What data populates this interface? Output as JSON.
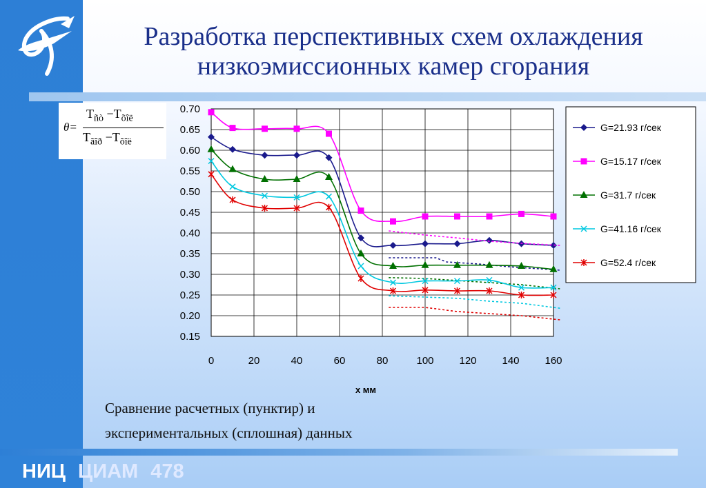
{
  "title": [
    "Разработка перспективных схем охлаждения",
    "низкоэмиссионных камер сгорания"
  ],
  "formula": {
    "lhs": "θ=",
    "num_a": "T",
    "num_a_sub": "ñò",
    "minus": "−",
    "num_b": "T",
    "num_b_sub": "õîë",
    "den_a": "T",
    "den_a_sub": "ãîð",
    "den_b": "T",
    "den_b_sub": "õîë"
  },
  "caption": [
    "Сравнение расчетных (пунктир) и",
    "экспериментальных (сплошная) данных"
  ],
  "footer": {
    "org": "НИЦ",
    "name": "ЦИАМ",
    "page": "478"
  },
  "chart_data": {
    "type": "line",
    "xlabel": "x мм",
    "ylabel": "",
    "xlim": [
      0,
      160
    ],
    "ylim": [
      0.15,
      0.7
    ],
    "xticks": [
      "0",
      "20",
      "40",
      "60",
      "80",
      "100",
      "120",
      "140",
      "160"
    ],
    "yticks": [
      "0.70",
      "0.65",
      "0.60",
      "0.55",
      "0.50",
      "0.45",
      "0.40",
      "0.35",
      "0.30",
      "0.25",
      "0.20",
      "0.15"
    ],
    "grid": true,
    "legend_position": "right",
    "x": [
      0,
      10,
      25,
      40,
      55,
      70,
      85,
      100,
      115,
      130,
      145,
      160
    ],
    "series": [
      {
        "name": "G=21.93 г/сек",
        "color": "#1a1a8c",
        "marker": "diamond",
        "values": [
          0.632,
          0.602,
          0.588,
          0.588,
          0.582,
          0.388,
          0.37,
          0.374,
          0.374,
          0.382,
          0.374,
          0.37
        ],
        "calc": {
          "x": [
            83,
            105,
            110,
            125,
            140,
            163
          ],
          "values": [
            0.34,
            0.34,
            0.33,
            0.325,
            0.318,
            0.31
          ]
        }
      },
      {
        "name": "G=15.17 г/сек",
        "color": "#ff00ff",
        "marker": "square",
        "values": [
          0.692,
          0.654,
          0.652,
          0.652,
          0.64,
          0.454,
          0.428,
          0.44,
          0.44,
          0.44,
          0.446,
          0.44
        ],
        "calc": {
          "x": [
            83,
            100,
            115,
            130,
            145,
            163
          ],
          "values": [
            0.405,
            0.395,
            0.388,
            0.38,
            0.375,
            0.37
          ]
        }
      },
      {
        "name": "G=31.7 г/сек",
        "color": "#007000",
        "marker": "triangle",
        "values": [
          0.602,
          0.554,
          0.53,
          0.53,
          0.535,
          0.35,
          0.32,
          0.322,
          0.322,
          0.322,
          0.32,
          0.312
        ],
        "calc": {
          "x": [
            83,
            100,
            115,
            130,
            145,
            163
          ],
          "values": [
            0.292,
            0.29,
            0.285,
            0.28,
            0.275,
            0.265
          ]
        }
      },
      {
        "name": "G=41.16 г/сек",
        "color": "#00c8e0",
        "marker": "x",
        "values": [
          0.574,
          0.512,
          0.49,
          0.486,
          0.488,
          0.32,
          0.28,
          0.284,
          0.284,
          0.286,
          0.268,
          0.268
        ],
        "calc": {
          "x": [
            83,
            100,
            115,
            130,
            145,
            163
          ],
          "values": [
            0.248,
            0.245,
            0.242,
            0.235,
            0.23,
            0.218
          ]
        }
      },
      {
        "name": "G=52.4 г/сек",
        "color": "#e00000",
        "marker": "star",
        "values": [
          0.542,
          0.48,
          0.46,
          0.46,
          0.462,
          0.29,
          0.26,
          0.262,
          0.26,
          0.26,
          0.25,
          0.25
        ],
        "calc": {
          "x": [
            83,
            100,
            115,
            130,
            145,
            163
          ],
          "values": [
            0.22,
            0.22,
            0.21,
            0.205,
            0.2,
            0.19
          ]
        }
      }
    ]
  }
}
